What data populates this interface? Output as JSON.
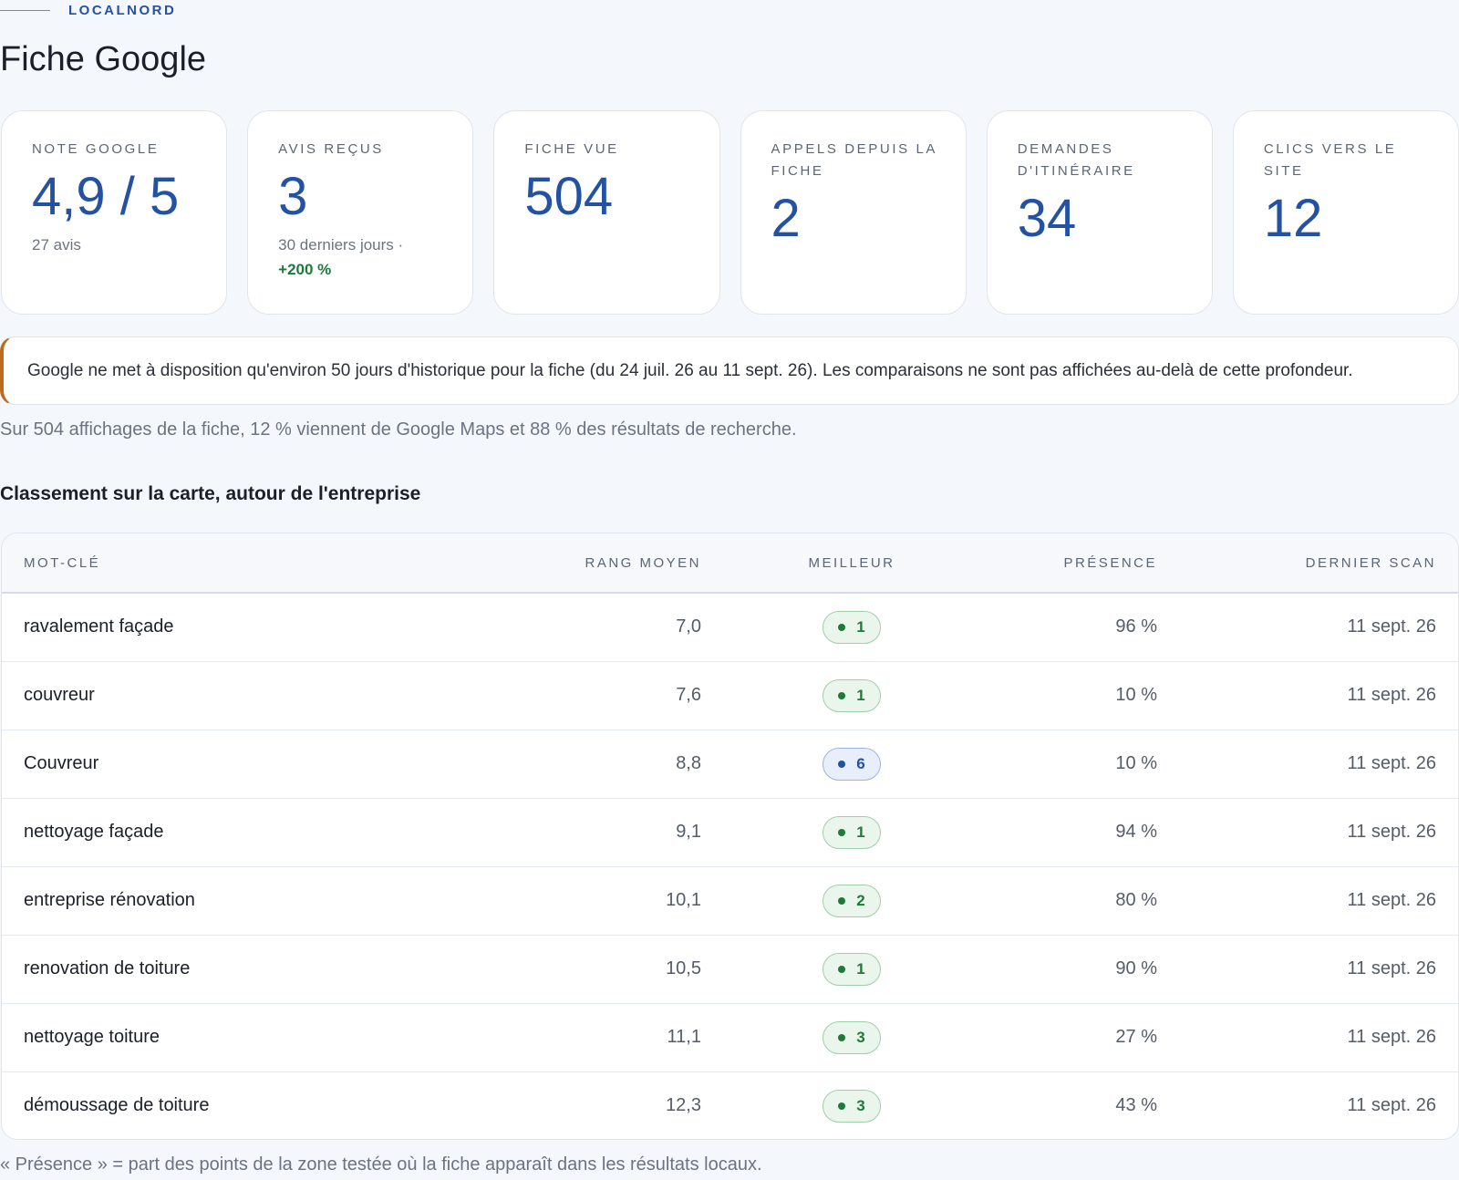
{
  "header": {
    "brand": "LOCALNORD",
    "title": "Fiche Google"
  },
  "kpis": [
    {
      "label": "NOTE GOOGLE",
      "value": "4,9 / 5",
      "sub": "27 avis",
      "delta": ""
    },
    {
      "label": "AVIS REÇUS",
      "value": "3",
      "sub": "30 derniers jours ·",
      "delta": "+200 %"
    },
    {
      "label": "FICHE VUE",
      "value": "504",
      "sub": "",
      "delta": ""
    },
    {
      "label": "APPELS DEPUIS LA FICHE",
      "value": "2",
      "sub": "",
      "delta": ""
    },
    {
      "label": "DEMANDES D'ITINÉRAIRE",
      "value": "34",
      "sub": "",
      "delta": ""
    },
    {
      "label": "CLICS VERS LE SITE",
      "value": "12",
      "sub": "",
      "delta": ""
    }
  ],
  "notice": "Google ne met à disposition qu'environ 50 jours d'historique pour la fiche (du 24 juil. 26 au 11 sept. 26). Les comparaisons ne sont pas affichées au-delà de cette profondeur.",
  "summary": "Sur 504 affichages de la fiche, 12 % viennent de Google Maps et 88 % des résultats de recherche.",
  "ranking": {
    "title": "Classement sur la carte, autour de l'entreprise",
    "columns": {
      "keyword": "MOT-CLÉ",
      "avg_rank": "RANG MOYEN",
      "best": "MEILLEUR",
      "presence": "PRÉSENCE",
      "last_scan": "DERNIER SCAN"
    },
    "rows": [
      {
        "keyword": "ravalement façade",
        "avg_rank": "7,0",
        "best": "1",
        "best_color": "green",
        "presence": "96 %",
        "last_scan": "11 sept. 26"
      },
      {
        "keyword": "couvreur",
        "avg_rank": "7,6",
        "best": "1",
        "best_color": "green",
        "presence": "10 %",
        "last_scan": "11 sept. 26"
      },
      {
        "keyword": "Couvreur",
        "avg_rank": "8,8",
        "best": "6",
        "best_color": "blue",
        "presence": "10 %",
        "last_scan": "11 sept. 26"
      },
      {
        "keyword": "nettoyage façade",
        "avg_rank": "9,1",
        "best": "1",
        "best_color": "green",
        "presence": "94 %",
        "last_scan": "11 sept. 26"
      },
      {
        "keyword": "entreprise rénovation",
        "avg_rank": "10,1",
        "best": "2",
        "best_color": "green",
        "presence": "80 %",
        "last_scan": "11 sept. 26"
      },
      {
        "keyword": "renovation de toiture",
        "avg_rank": "10,5",
        "best": "1",
        "best_color": "green",
        "presence": "90 %",
        "last_scan": "11 sept. 26"
      },
      {
        "keyword": "nettoyage toiture",
        "avg_rank": "11,1",
        "best": "3",
        "best_color": "green",
        "presence": "27 %",
        "last_scan": "11 sept. 26"
      },
      {
        "keyword": "démoussage de toiture",
        "avg_rank": "12,3",
        "best": "3",
        "best_color": "green",
        "presence": "43 %",
        "last_scan": "11 sept. 26"
      }
    ]
  },
  "footnote": "« Présence » = part des points de la zone testée où la fiche apparaît dans les résultats locaux.",
  "colors": {
    "accent": "#2452a3",
    "positive": "#1f7a3a",
    "notice_border": "#c06a1d",
    "background": "#f4f7fc"
  }
}
